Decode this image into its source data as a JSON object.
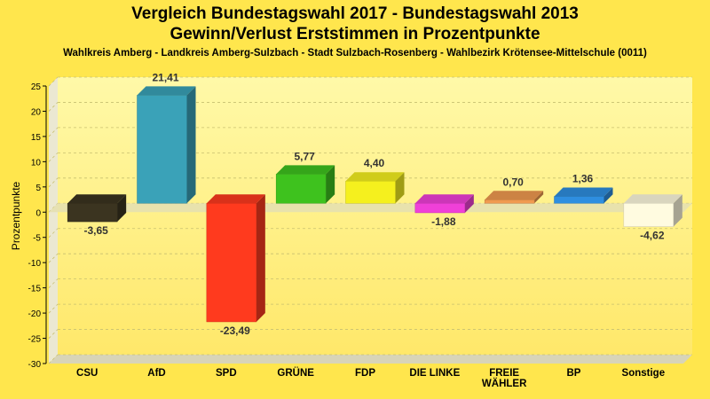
{
  "chart_data": {
    "type": "bar",
    "title": "Vergleich Bundestagswahl 2017 - Bundestagswahl 2013",
    "title2": "Gewinn/Verlust Erststimmen in Prozentpunkte",
    "subtitle": "Wahlkreis Amberg - Landkreis Amberg-Sulzbach - Stadt Sulzbach-Rosenberg - Wahlbezirk Krötensee-Mittelschule (0011)",
    "ylabel": "Prozentpunkte",
    "xlabel": "",
    "ylim": [
      -30,
      25
    ],
    "yticks": [
      25,
      20,
      15,
      10,
      5,
      0,
      -5,
      -10,
      -15,
      -20,
      -25,
      -30
    ],
    "grid": true,
    "categories": [
      "CSU",
      "AfD",
      "SPD",
      "GRÜNE",
      "FDP",
      "DIE LINKE",
      "FREIE WÄHLER",
      "BP",
      "Sonstige"
    ],
    "values": [
      -3.65,
      21.41,
      -23.49,
      5.77,
      4.4,
      -1.88,
      0.7,
      1.36,
      -4.62
    ],
    "value_labels": [
      "-3,65",
      "21,41",
      "-23,49",
      "5,77",
      "4,40",
      "-1,88",
      "0,70",
      "1,36",
      "-4,62"
    ],
    "colors": [
      "#3b3420",
      "#3aa2b8",
      "#ff3a1e",
      "#3ec21e",
      "#f5f01e",
      "#f040d8",
      "#f09a50",
      "#2e8ee0",
      "#fffbe0"
    ]
  }
}
